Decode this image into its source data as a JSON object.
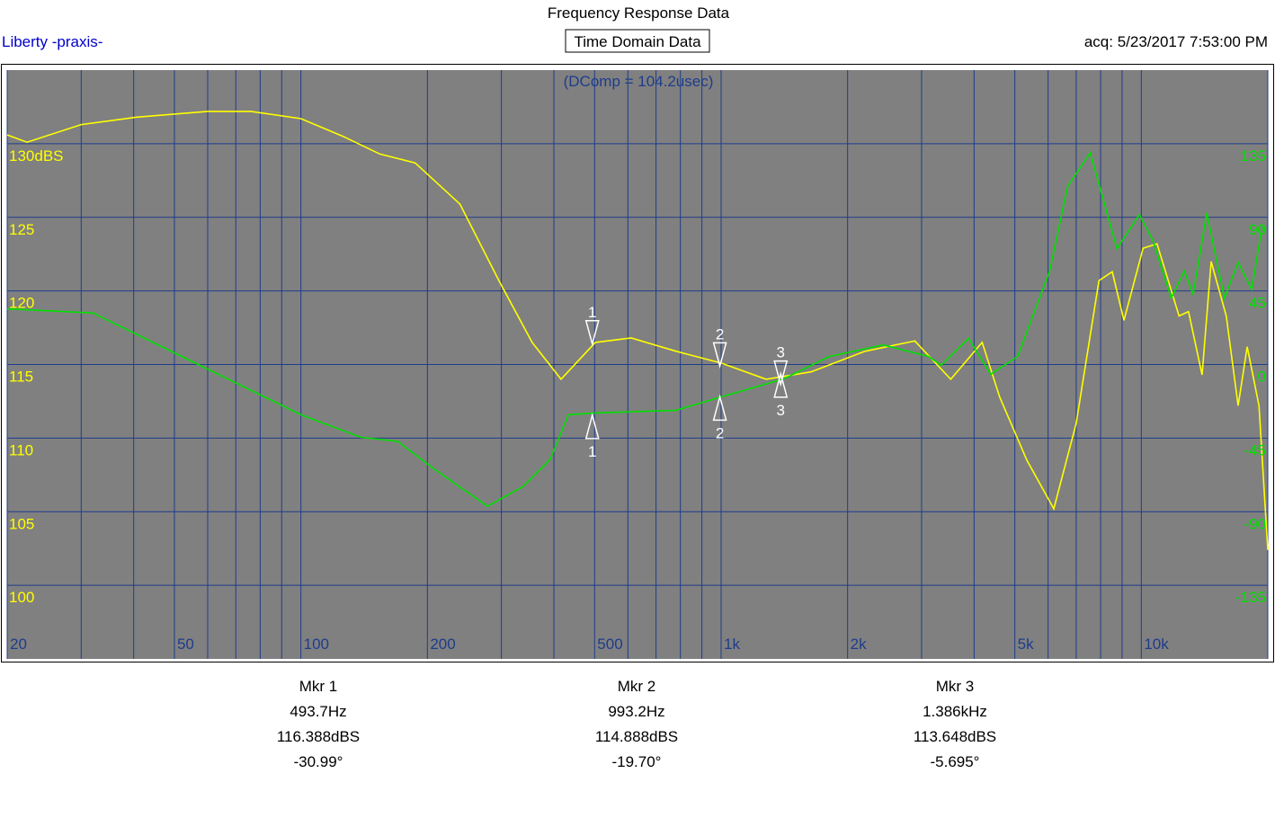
{
  "chart_data": {
    "type": "line",
    "title": "Frequency Response Data",
    "subtitle": "Liberty -praxis-",
    "button": "Time Domain Data",
    "acquired": "acq: 5/23/2017 7:53:00 PM",
    "annotation": "(DComp = 104.2usec)",
    "log_x": true,
    "grid": true,
    "xlim": [
      20,
      20000
    ],
    "xticks": [
      20,
      50,
      100,
      200,
      500,
      {
        "value": 1000,
        "label": "1k"
      },
      {
        "value": 2000,
        "label": "2k"
      },
      {
        "value": 5000,
        "label": "5k"
      },
      {
        "value": 10000,
        "label": "10k"
      }
    ],
    "x_minor_ticks": [
      30,
      40,
      60,
      70,
      80,
      90,
      300,
      400,
      600,
      700,
      800,
      900,
      3000,
      4000,
      6000,
      7000,
      8000,
      9000,
      20000
    ],
    "ylim": [
      95,
      135
    ],
    "yticks": [
      100,
      105,
      110,
      115,
      120,
      125,
      {
        "value": 130,
        "label": "130dBS"
      }
    ],
    "y2lim": [
      -180,
      180
    ],
    "y2ticks": [
      -135,
      -90,
      -45,
      0,
      45,
      90,
      135
    ],
    "series": [
      {
        "color": "#ffff00",
        "x": [
          20,
          22.3,
          30,
          40.5,
          60,
          76,
          100,
          126,
          154,
          187,
          239,
          296,
          355,
          416,
          502,
          611,
          782,
          1000,
          1280,
          1637,
          2200,
          2890,
          3520,
          4180,
          4600,
          5340,
          6190,
          7000,
          7930,
          8530,
          9090,
          10100,
          10900,
          12300,
          12950,
          13950,
          14660,
          15930,
          17000,
          17870,
          19060,
          20000
        ],
        "values": [
          130.6,
          130.1,
          131.3,
          131.8,
          132.2,
          132.2,
          131.7,
          130.5,
          129.3,
          128.7,
          125.9,
          120.7,
          116.5,
          114.0,
          116.5,
          116.8,
          115.9,
          115.1,
          114.0,
          114.5,
          115.9,
          116.6,
          114.0,
          116.5,
          112.8,
          108.5,
          105.2,
          111.0,
          120.7,
          121.3,
          118.0,
          122.9,
          123.2,
          118.3,
          118.6,
          114.3,
          122.0,
          118.3,
          112.2,
          116.2,
          112.2,
          102.4
        ]
      },
      {
        "color": "#00e000",
        "axis": "y2",
        "x": [
          20,
          32,
          52,
          100,
          139,
          170,
          207,
          278,
          338,
          392,
          433,
          502,
          782,
          1000,
          1410,
          1808,
          2430,
          3110,
          3340,
          3880,
          4380,
          5080,
          6050,
          6680,
          7560,
          8750,
          9890,
          10650,
          11780,
          12660,
          13290,
          14310,
          15770,
          17000,
          18300,
          19400
        ],
        "values": [
          34,
          31.5,
          5,
          -30.7,
          -44.5,
          -47,
          -63.7,
          -86.7,
          -74.6,
          -58,
          -30.7,
          -29.6,
          -28,
          -19.8,
          -8.8,
          4.9,
          12,
          5,
          -0.5,
          16,
          -6,
          5,
          57,
          109,
          129.5,
          70.8,
          91.6,
          76,
          40.6,
          57,
          43,
          92.7,
          40.6,
          62.5,
          46,
          84.5
        ]
      }
    ],
    "markers": [
      {
        "number": "1",
        "label": "Mkr 1",
        "freq": 493.7,
        "freq_label": "493.7Hz",
        "mag": 116.388,
        "mag_label": "116.388dBS",
        "phase": -30.99,
        "phase_label": "-30.99°"
      },
      {
        "number": "2",
        "label": "Mkr 2",
        "freq": 993.2,
        "freq_label": "993.2Hz",
        "mag": 114.888,
        "mag_label": "114.888dBS",
        "phase": -19.7,
        "phase_label": "-19.70°"
      },
      {
        "number": "3",
        "label": "Mkr 3",
        "freq": 1386,
        "freq_label": "1.386kHz",
        "mag": 113.648,
        "mag_label": "113.648dBS",
        "phase": -5.695,
        "phase_label": "-5.695°"
      }
    ]
  }
}
